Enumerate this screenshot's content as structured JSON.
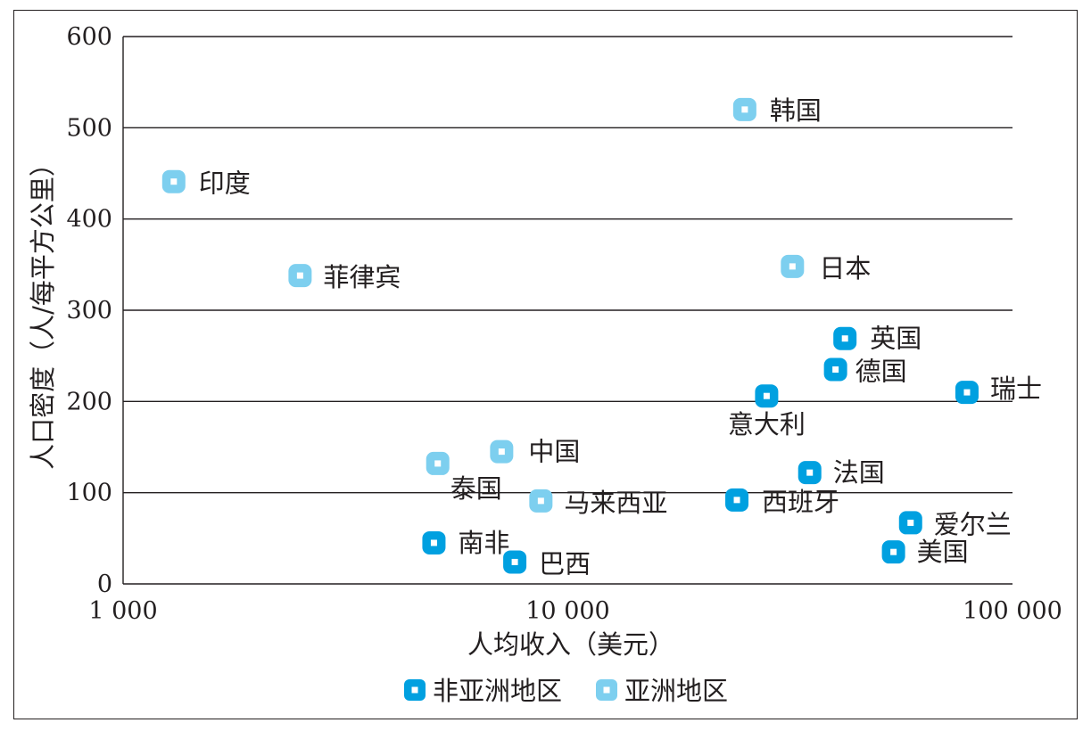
{
  "chart_data": {
    "type": "scatter",
    "xscale": "log",
    "xlim": [
      1000,
      100000
    ],
    "ylim": [
      0,
      600
    ],
    "grid": "horizontal",
    "legend_position": "bottom",
    "xlabel": "人均收入（美元）",
    "ylabel": "人口密度（人/每平方公里）",
    "x_ticks": [
      {
        "value": 1000,
        "label": "1 000"
      },
      {
        "value": 10000,
        "label": "10 000"
      },
      {
        "value": 100000,
        "label": "100 000"
      }
    ],
    "y_ticks": [
      {
        "value": 0,
        "label": "0"
      },
      {
        "value": 100,
        "label": "100"
      },
      {
        "value": 200,
        "label": "200"
      },
      {
        "value": 300,
        "label": "300"
      },
      {
        "value": 400,
        "label": "400"
      },
      {
        "value": 500,
        "label": "500"
      },
      {
        "value": 600,
        "label": "600"
      }
    ],
    "series": [
      {
        "name": "非亚洲地区",
        "color": "#00a0e0",
        "points": [
          {
            "label": "英国",
            "x": 42000,
            "y": 269
          },
          {
            "label": "德国",
            "x": 40000,
            "y": 235
          },
          {
            "label": "瑞士",
            "x": 79000,
            "y": 210
          },
          {
            "label": "意大利",
            "x": 28000,
            "y": 206
          },
          {
            "label": "法国",
            "x": 35000,
            "y": 122
          },
          {
            "label": "西班牙",
            "x": 24000,
            "y": 92
          },
          {
            "label": "爱尔兰",
            "x": 59000,
            "y": 67
          },
          {
            "label": "美国",
            "x": 54000,
            "y": 35
          },
          {
            "label": "南非",
            "x": 5000,
            "y": 45
          },
          {
            "label": "巴西",
            "x": 7600,
            "y": 24
          }
        ]
      },
      {
        "name": "亚洲地区",
        "color": "#7dcfef",
        "points": [
          {
            "label": "韩国",
            "x": 25000,
            "y": 520
          },
          {
            "label": "印度",
            "x": 1300,
            "y": 441
          },
          {
            "label": "菲律宾",
            "x": 2500,
            "y": 338
          },
          {
            "label": "日本",
            "x": 32000,
            "y": 348
          },
          {
            "label": "中国",
            "x": 7100,
            "y": 145
          },
          {
            "label": "泰国",
            "x": 5100,
            "y": 132
          },
          {
            "label": "马来西亚",
            "x": 8700,
            "y": 91
          }
        ]
      }
    ]
  }
}
